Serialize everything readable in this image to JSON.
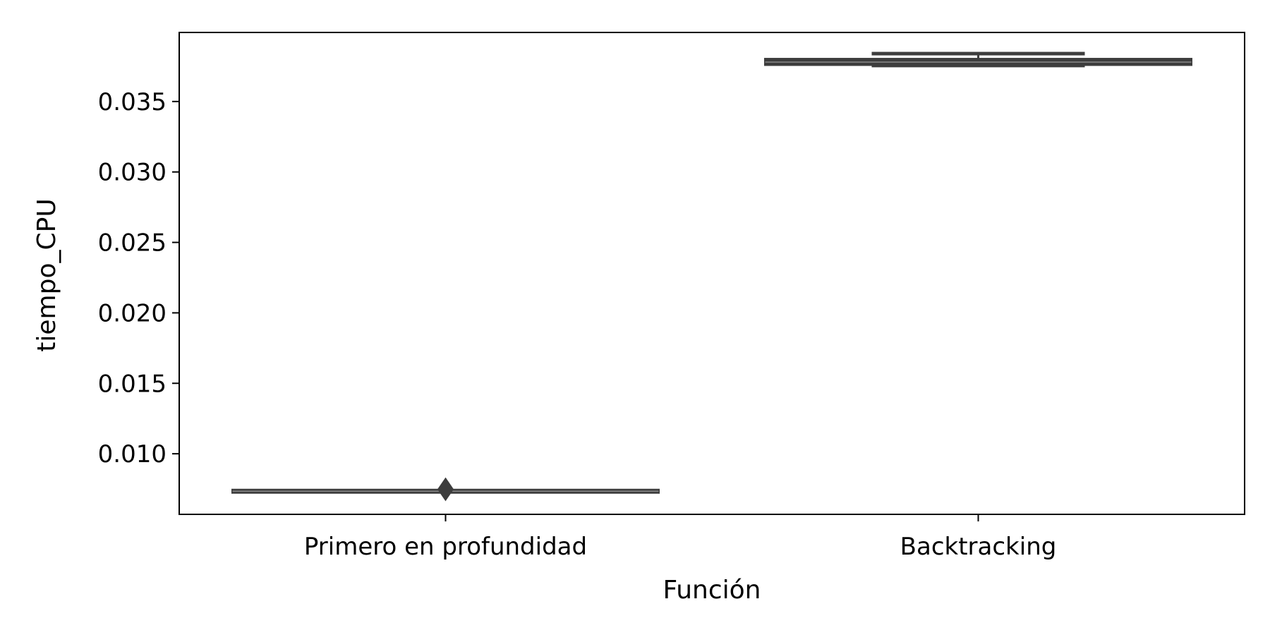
{
  "chart_data": {
    "type": "box",
    "title": "",
    "xlabel": "Función",
    "ylabel": "tiempo_CPU",
    "categories": [
      "Primero en profundidad",
      "Backtracking"
    ],
    "ylim": [
      0.0057,
      0.0399
    ],
    "yticks": [
      0.01,
      0.015,
      0.02,
      0.025,
      0.03,
      0.035
    ],
    "ytick_labels": [
      "0.010",
      "0.015",
      "0.020",
      "0.025",
      "0.030",
      "0.035"
    ],
    "grid": false,
    "legend": "none",
    "boxes": [
      {
        "category": "Primero en profundidad",
        "whisker_low": 0.00734,
        "q1": 0.00734,
        "median": 0.00734,
        "q3": 0.00734,
        "whisker_high": 0.00734,
        "outliers": [
          0.00748
        ]
      },
      {
        "category": "Backtracking",
        "whisker_low": 0.03755,
        "q1": 0.0377,
        "median": 0.0378,
        "q3": 0.03792,
        "whisker_high": 0.0384,
        "outliers": []
      }
    ],
    "colors": {
      "box_fill": "#3d3d3d",
      "box_line": "#3d3d3d",
      "axis": "#000000"
    }
  }
}
